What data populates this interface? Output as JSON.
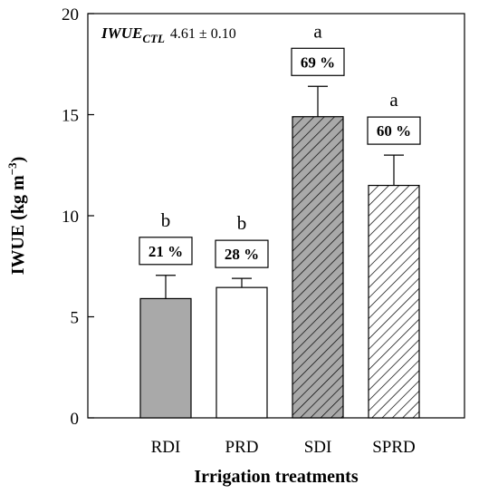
{
  "chart_data": {
    "type": "bar",
    "categories": [
      "RDI",
      "PRD",
      "SDI",
      "SPRD"
    ],
    "values": [
      5.9,
      6.45,
      14.9,
      11.5
    ],
    "errors": [
      1.15,
      0.45,
      1.5,
      1.5
    ],
    "significance": [
      "b",
      "b",
      "a",
      "a"
    ],
    "percent_labels": [
      "21 %",
      "28 %",
      "69 %",
      "60 %"
    ],
    "bar_fills": [
      "gray",
      "white",
      "hatched-gray",
      "hatched-white"
    ],
    "colors": {
      "gray": "#a9a9a9",
      "hatch_bg_gray": "#a9a9a9",
      "hatch_bg_white": "#ffffff",
      "outline": "#000000"
    },
    "xlabel": "Irrigation treatments",
    "ylabel_main": "IWUE (kg m",
    "ylabel_sup": "−3",
    "ylabel_end": ")",
    "ylim": [
      0,
      20
    ],
    "yticks": [
      0,
      5,
      10,
      15,
      20
    ],
    "grid": false,
    "annotation": {
      "main": "IWUE",
      "sub": "CTL",
      "value": "4.61 ± 0.10"
    }
  }
}
